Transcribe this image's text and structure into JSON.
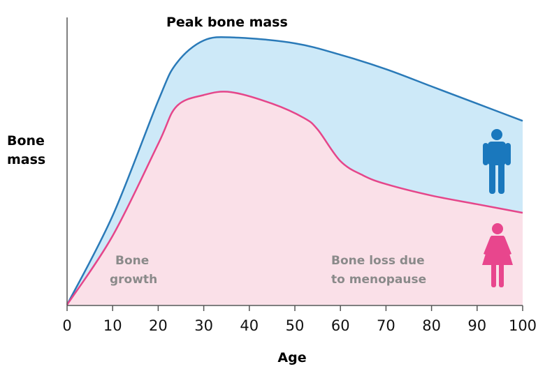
{
  "chart_data": {
    "type": "area",
    "title": "Peak bone mass",
    "xlabel": "Age",
    "ylabel": [
      "Bone",
      "mass"
    ],
    "xlim": [
      0,
      100
    ],
    "ylim": [
      0,
      100
    ],
    "xticks": [
      0,
      10,
      20,
      30,
      40,
      50,
      60,
      70,
      80,
      90,
      100
    ],
    "grid": false,
    "series": [
      {
        "name": "Men",
        "icon": "male-figure-icon",
        "line_color": "#2a7ab8",
        "fill_color": "#cde9f8",
        "x": [
          0,
          10,
          20,
          24,
          30,
          37,
          50,
          60,
          70,
          80,
          90,
          100
        ],
        "y": [
          0,
          31,
          71,
          84,
          92,
          93,
          91,
          87,
          82,
          76,
          70,
          64
        ]
      },
      {
        "name": "Women",
        "icon": "female-figure-icon",
        "line_color": "#e5468a",
        "fill_color": "#fae0e8",
        "x": [
          0,
          10,
          20,
          24,
          30,
          36,
          45,
          52,
          55,
          60,
          65,
          70,
          80,
          90,
          100
        ],
        "y": [
          0,
          24,
          56,
          69,
          73,
          74,
          70,
          65,
          61,
          50,
          45,
          42,
          38,
          35,
          32
        ]
      }
    ],
    "annotations": [
      {
        "lines": [
          "Bone",
          "growth"
        ]
      },
      {
        "lines": [
          "Bone loss due",
          "to menopause"
        ]
      }
    ],
    "icon_colors": {
      "male": "#1a78bd",
      "female": "#e8468d"
    }
  }
}
